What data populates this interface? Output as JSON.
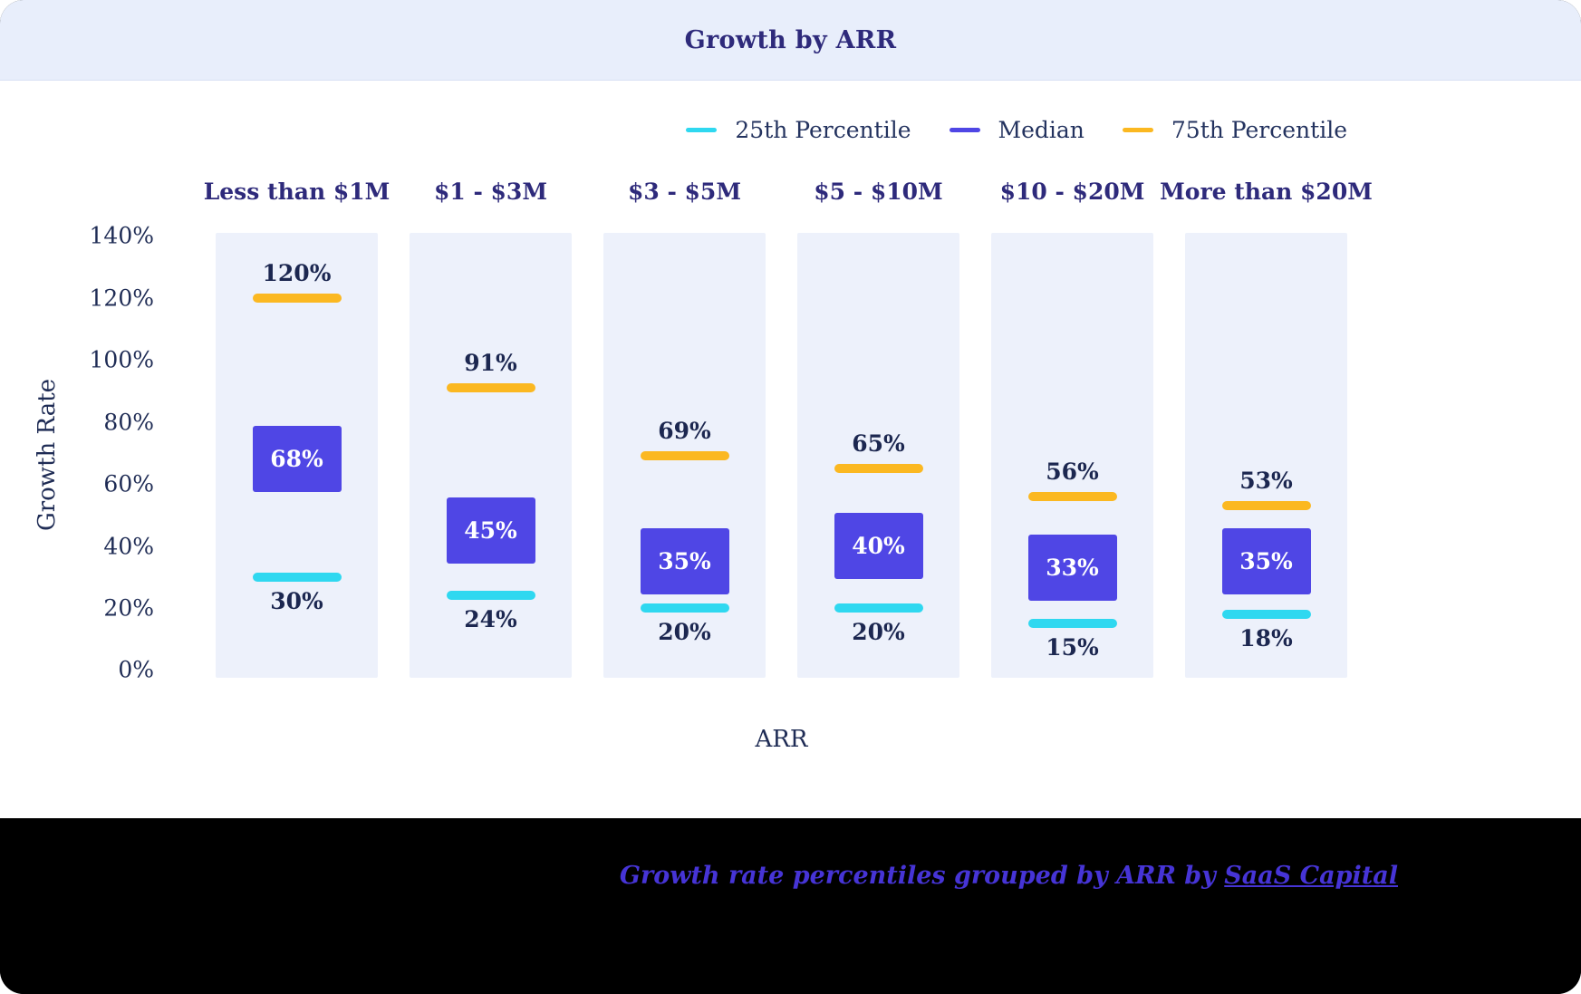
{
  "header": {
    "title": "Growth by ARR"
  },
  "legend": [
    {
      "label": "25th Percentile",
      "color": "#2fd8f0"
    },
    {
      "label": "Median",
      "color": "#4f46e5"
    },
    {
      "label": "75th Percentile",
      "color": "#fbb821"
    }
  ],
  "axes": {
    "y_label": "Growth Rate",
    "x_label": "ARR",
    "y_ticks": [
      "140%",
      "120%",
      "100%",
      "80%",
      "60%",
      "40%",
      "20%",
      "0%"
    ]
  },
  "footer": {
    "caption_prefix": "Growth rate percentiles grouped by ARR by ",
    "link_text": "SaaS Capital"
  },
  "chart_data": {
    "type": "bar",
    "title": "Growth by ARR",
    "xlabel": "ARR",
    "ylabel": "Growth Rate",
    "ylim": [
      0,
      140
    ],
    "categories": [
      "Less than $1M",
      "$1 - $3M",
      "$3 - $5M",
      "$5 - $10M",
      "$10 - $20M",
      "More than $20M"
    ],
    "series": [
      {
        "name": "25th Percentile",
        "values": [
          30,
          24,
          20,
          20,
          15,
          18
        ]
      },
      {
        "name": "Median",
        "values": [
          68,
          45,
          35,
          40,
          33,
          35
        ]
      },
      {
        "name": "75th Percentile",
        "values": [
          120,
          91,
          69,
          65,
          56,
          53
        ]
      }
    ],
    "legend_position": "top-right",
    "grid": false
  }
}
